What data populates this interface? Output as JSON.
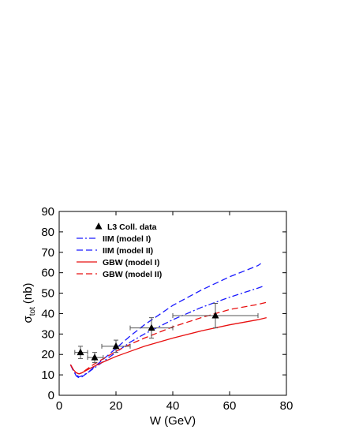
{
  "chart_data": {
    "type": "scatter",
    "xlabel": "W (GeV)",
    "ylabel": {
      "base": "σ",
      "sub": "tot",
      "rest": "(nb)"
    },
    "xlim": [
      0,
      80
    ],
    "ylim": [
      0,
      90
    ],
    "xticks": [
      0,
      20,
      40,
      60,
      80
    ],
    "yticks": [
      0,
      10,
      20,
      30,
      40,
      50,
      60,
      70,
      80,
      90
    ],
    "grid": false,
    "legend_position": "top-left",
    "series": [
      {
        "name": "L3 Coll. data",
        "kind": "points",
        "marker": "triangle-up",
        "color": "#000000",
        "points": [
          {
            "x": 7.5,
            "y": 21.0,
            "xerr": [
              5.5,
              10.0
            ],
            "yerr": [
              18.0,
              24.0
            ]
          },
          {
            "x": 12.5,
            "y": 18.5,
            "xerr": [
              10.0,
              15.5
            ],
            "yerr": [
              16.0,
              21.0
            ]
          },
          {
            "x": 20.0,
            "y": 24.0,
            "xerr": [
              15.0,
              25.0
            ],
            "yerr": [
              21.0,
              27.0
            ]
          },
          {
            "x": 32.5,
            "y": 33.0,
            "xerr": [
              25.0,
              40.0
            ],
            "yerr": [
              28.0,
              38.0
            ]
          },
          {
            "x": 55.0,
            "y": 39.0,
            "xerr": [
              40.0,
              70.0
            ],
            "yerr": [
              33.0,
              45.0
            ]
          }
        ]
      },
      {
        "name": "IIM (model I)",
        "kind": "line",
        "color": "#1a1aff",
        "dash": "dash-dot",
        "x": [
          4,
          5,
          6,
          7,
          8,
          10,
          12,
          15,
          20,
          25,
          30,
          40,
          50,
          60,
          70,
          72
        ],
        "y": [
          15,
          12,
          10,
          9,
          9.5,
          11,
          13,
          16,
          21,
          26,
          30,
          37,
          43,
          48,
          52.5,
          53.5
        ]
      },
      {
        "name": "IIM (model II)",
        "kind": "line",
        "color": "#1a1aff",
        "dash": "dashed",
        "x": [
          4,
          5,
          6,
          7,
          8,
          10,
          12,
          15,
          20,
          25,
          30,
          40,
          50,
          60,
          70,
          71
        ],
        "y": [
          15,
          12,
          9.5,
          8.5,
          9,
          11,
          13.5,
          17,
          23,
          29,
          34.5,
          44,
          51.5,
          58,
          63.5,
          64.5
        ]
      },
      {
        "name": "GBW (model I)",
        "kind": "line",
        "color": "#e81010",
        "dash": "solid",
        "x": [
          4,
          5,
          6,
          7,
          8,
          10,
          12,
          15,
          20,
          25,
          30,
          40,
          50,
          60,
          70,
          73
        ],
        "y": [
          15,
          12.5,
          11,
          10.5,
          11,
          12.5,
          14,
          16,
          19,
          21.5,
          24,
          28,
          31.5,
          34.5,
          37,
          38
        ]
      },
      {
        "name": "GBW (model II)",
        "kind": "line",
        "color": "#e81010",
        "dash": "dashed",
        "x": [
          4,
          5,
          6,
          7,
          8,
          10,
          12,
          15,
          20,
          25,
          30,
          40,
          50,
          60,
          70,
          73
        ],
        "y": [
          15,
          12.5,
          11,
          10.5,
          11,
          13,
          15,
          17.5,
          21.5,
          25,
          28,
          33.5,
          38,
          42,
          44.5,
          45.5
        ]
      }
    ]
  }
}
